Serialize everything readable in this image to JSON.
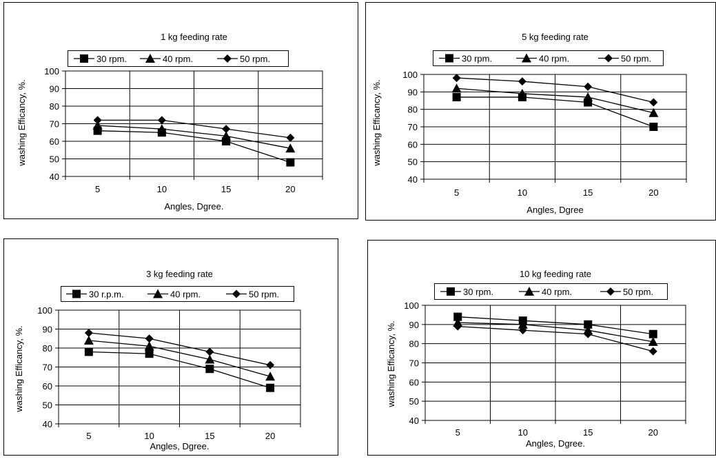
{
  "chart_data": [
    {
      "type": "line",
      "title": "1 kg feeding rate",
      "xlabel": "Angles, Dgree.",
      "ylabel": "washing Efficancy, %.",
      "categories": [
        "5",
        "10",
        "15",
        "20"
      ],
      "ylim": [
        40,
        100
      ],
      "yticks": [
        "40",
        "50",
        "60",
        "70",
        "80",
        "90",
        "100"
      ],
      "legend_position": "top",
      "grid": true,
      "series": [
        {
          "name": "30 rpm.",
          "marker": "square",
          "values": [
            66,
            65,
            60,
            48
          ]
        },
        {
          "name": "40 rpm.",
          "marker": "triangle",
          "values": [
            69,
            67,
            63,
            56
          ]
        },
        {
          "name": "50 rpm.",
          "marker": "diamond",
          "values": [
            72,
            72,
            67,
            62
          ]
        }
      ]
    },
    {
      "type": "line",
      "title": "5 kg feeding rate",
      "xlabel": "Angles, Dgree",
      "ylabel": "washing Efficancy, %.",
      "categories": [
        "5",
        "10",
        "15",
        "20"
      ],
      "ylim": [
        40,
        100
      ],
      "yticks": [
        "40",
        "50",
        "60",
        "70",
        "80",
        "90",
        "100"
      ],
      "legend_position": "top",
      "grid": true,
      "series": [
        {
          "name": "30 rpm.",
          "marker": "square",
          "values": [
            87,
            87,
            84,
            70
          ]
        },
        {
          "name": "40 rpm.",
          "marker": "triangle",
          "values": [
            92,
            89,
            87,
            78
          ]
        },
        {
          "name": "50 rpm.",
          "marker": "diamond",
          "values": [
            98,
            96,
            93,
            84
          ]
        }
      ]
    },
    {
      "type": "line",
      "title": "3 kg feeding rate",
      "xlabel": "Angles, Dgree.",
      "ylabel": "washing Efficancy, %.",
      "categories": [
        "5",
        "10",
        "15",
        "20"
      ],
      "ylim": [
        40,
        100
      ],
      "yticks": [
        "40",
        "50",
        "60",
        "70",
        "80",
        "90",
        "100"
      ],
      "legend_position": "top",
      "grid": true,
      "series": [
        {
          "name": "30 r.p.m.",
          "marker": "square",
          "values": [
            78,
            77,
            69,
            59
          ]
        },
        {
          "name": "40 rpm.",
          "marker": "triangle",
          "values": [
            84,
            81,
            74,
            65
          ]
        },
        {
          "name": "50 rpm.",
          "marker": "diamond",
          "values": [
            88,
            85,
            78,
            71
          ]
        }
      ]
    },
    {
      "type": "line",
      "title": "10 kg feeding rate",
      "xlabel": "Angles, Dgree.",
      "ylabel": "washing Efficancy, %.",
      "categories": [
        "5",
        "10",
        "15",
        "20"
      ],
      "ylim": [
        40,
        100
      ],
      "yticks": [
        "40",
        "50",
        "60",
        "70",
        "80",
        "90",
        "100"
      ],
      "legend_position": "top",
      "grid": true,
      "series": [
        {
          "name": "30 rpm.",
          "marker": "square",
          "values": [
            94,
            92,
            90,
            85
          ]
        },
        {
          "name": "40 rpm.",
          "marker": "triangle",
          "values": [
            91,
            90,
            87,
            81
          ]
        },
        {
          "name": "50 rpm.",
          "marker": "diamond",
          "values": [
            89,
            87,
            85,
            76
          ]
        }
      ]
    }
  ]
}
